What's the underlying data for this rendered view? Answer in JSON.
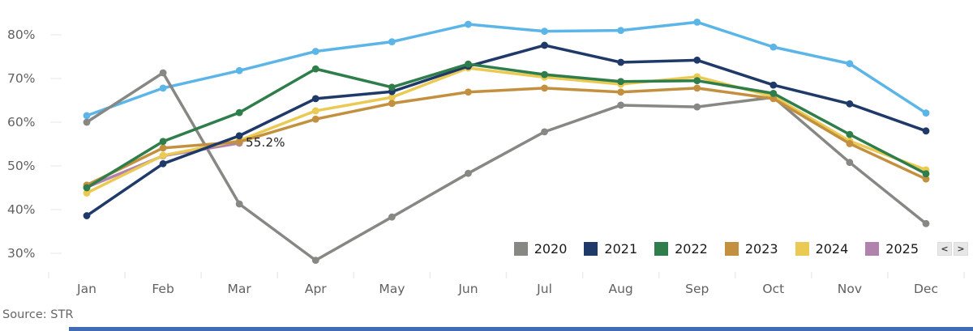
{
  "source": {
    "text": "Source: STR"
  },
  "annotation": {
    "text": "55.2%"
  },
  "legend": {
    "items": [
      {
        "label": "2020",
        "color": "#878783"
      },
      {
        "label": "2021",
        "color": "#1f3a68"
      },
      {
        "label": "2022",
        "color": "#2f7d4b"
      },
      {
        "label": "2023",
        "color": "#c3903f"
      },
      {
        "label": "2024",
        "color": "#eaca52"
      },
      {
        "label": "2025",
        "color": "#b183ac"
      }
    ],
    "prev_icon": "<",
    "next_icon": ">"
  },
  "chart_data": {
    "type": "line",
    "title": "",
    "xlabel": "",
    "ylabel": "",
    "grid": false,
    "legend_position": "bottom-right",
    "x_categories": [
      "Jan",
      "Feb",
      "Mar",
      "Apr",
      "May",
      "Jun",
      "Jul",
      "Aug",
      "Sep",
      "Oct",
      "Nov",
      "Dec"
    ],
    "y_ticks": [
      {
        "label": "80%",
        "value": 80
      },
      {
        "label": "70%",
        "value": 70
      },
      {
        "label": "60%",
        "value": 60
      },
      {
        "label": "50%",
        "value": 50
      },
      {
        "label": "40%",
        "value": 40
      },
      {
        "label": "30%",
        "value": 30
      }
    ],
    "ylim": [
      26,
      86
    ],
    "unit": "%",
    "series": [
      {
        "name": "",
        "color": "#5bb5e7",
        "values": [
          61.5,
          67.8,
          71.8,
          76.2,
          78.4,
          82.4,
          80.8,
          81.0,
          82.9,
          77.2,
          73.4,
          62.1
        ]
      },
      {
        "name": "2020",
        "color": "#878783",
        "values": [
          60.0,
          71.3,
          41.3,
          28.4,
          38.3,
          48.3,
          57.8,
          63.9,
          63.5,
          65.7,
          50.8,
          36.8
        ]
      },
      {
        "name": "2025",
        "color": "#b183ac",
        "values": [
          45.1,
          52.3,
          55.2
        ]
      },
      {
        "name": "2024",
        "color": "#eaca52",
        "values": [
          43.8,
          52.4,
          55.8,
          62.6,
          65.7,
          72.4,
          70.3,
          68.7,
          70.4,
          65.9,
          55.7,
          49.1
        ]
      },
      {
        "name": "2023",
        "color": "#c3903f",
        "values": [
          45.6,
          54.1,
          55.5,
          60.7,
          64.3,
          66.9,
          67.8,
          66.9,
          67.8,
          65.4,
          55.1,
          47.0
        ]
      },
      {
        "name": "2021",
        "color": "#1f3a68",
        "values": [
          38.6,
          50.5,
          56.9,
          65.4,
          67.0,
          72.8,
          77.6,
          73.7,
          74.2,
          68.5,
          64.2,
          58.0
        ]
      },
      {
        "name": "2022",
        "color": "#2f7d4b",
        "values": [
          45.0,
          55.6,
          62.2,
          72.2,
          68.0,
          73.3,
          70.9,
          69.3,
          69.5,
          66.6,
          57.2,
          48.2
        ]
      }
    ],
    "annotated_point": {
      "series": "2025",
      "x": "Mar",
      "value": 55.2
    }
  }
}
